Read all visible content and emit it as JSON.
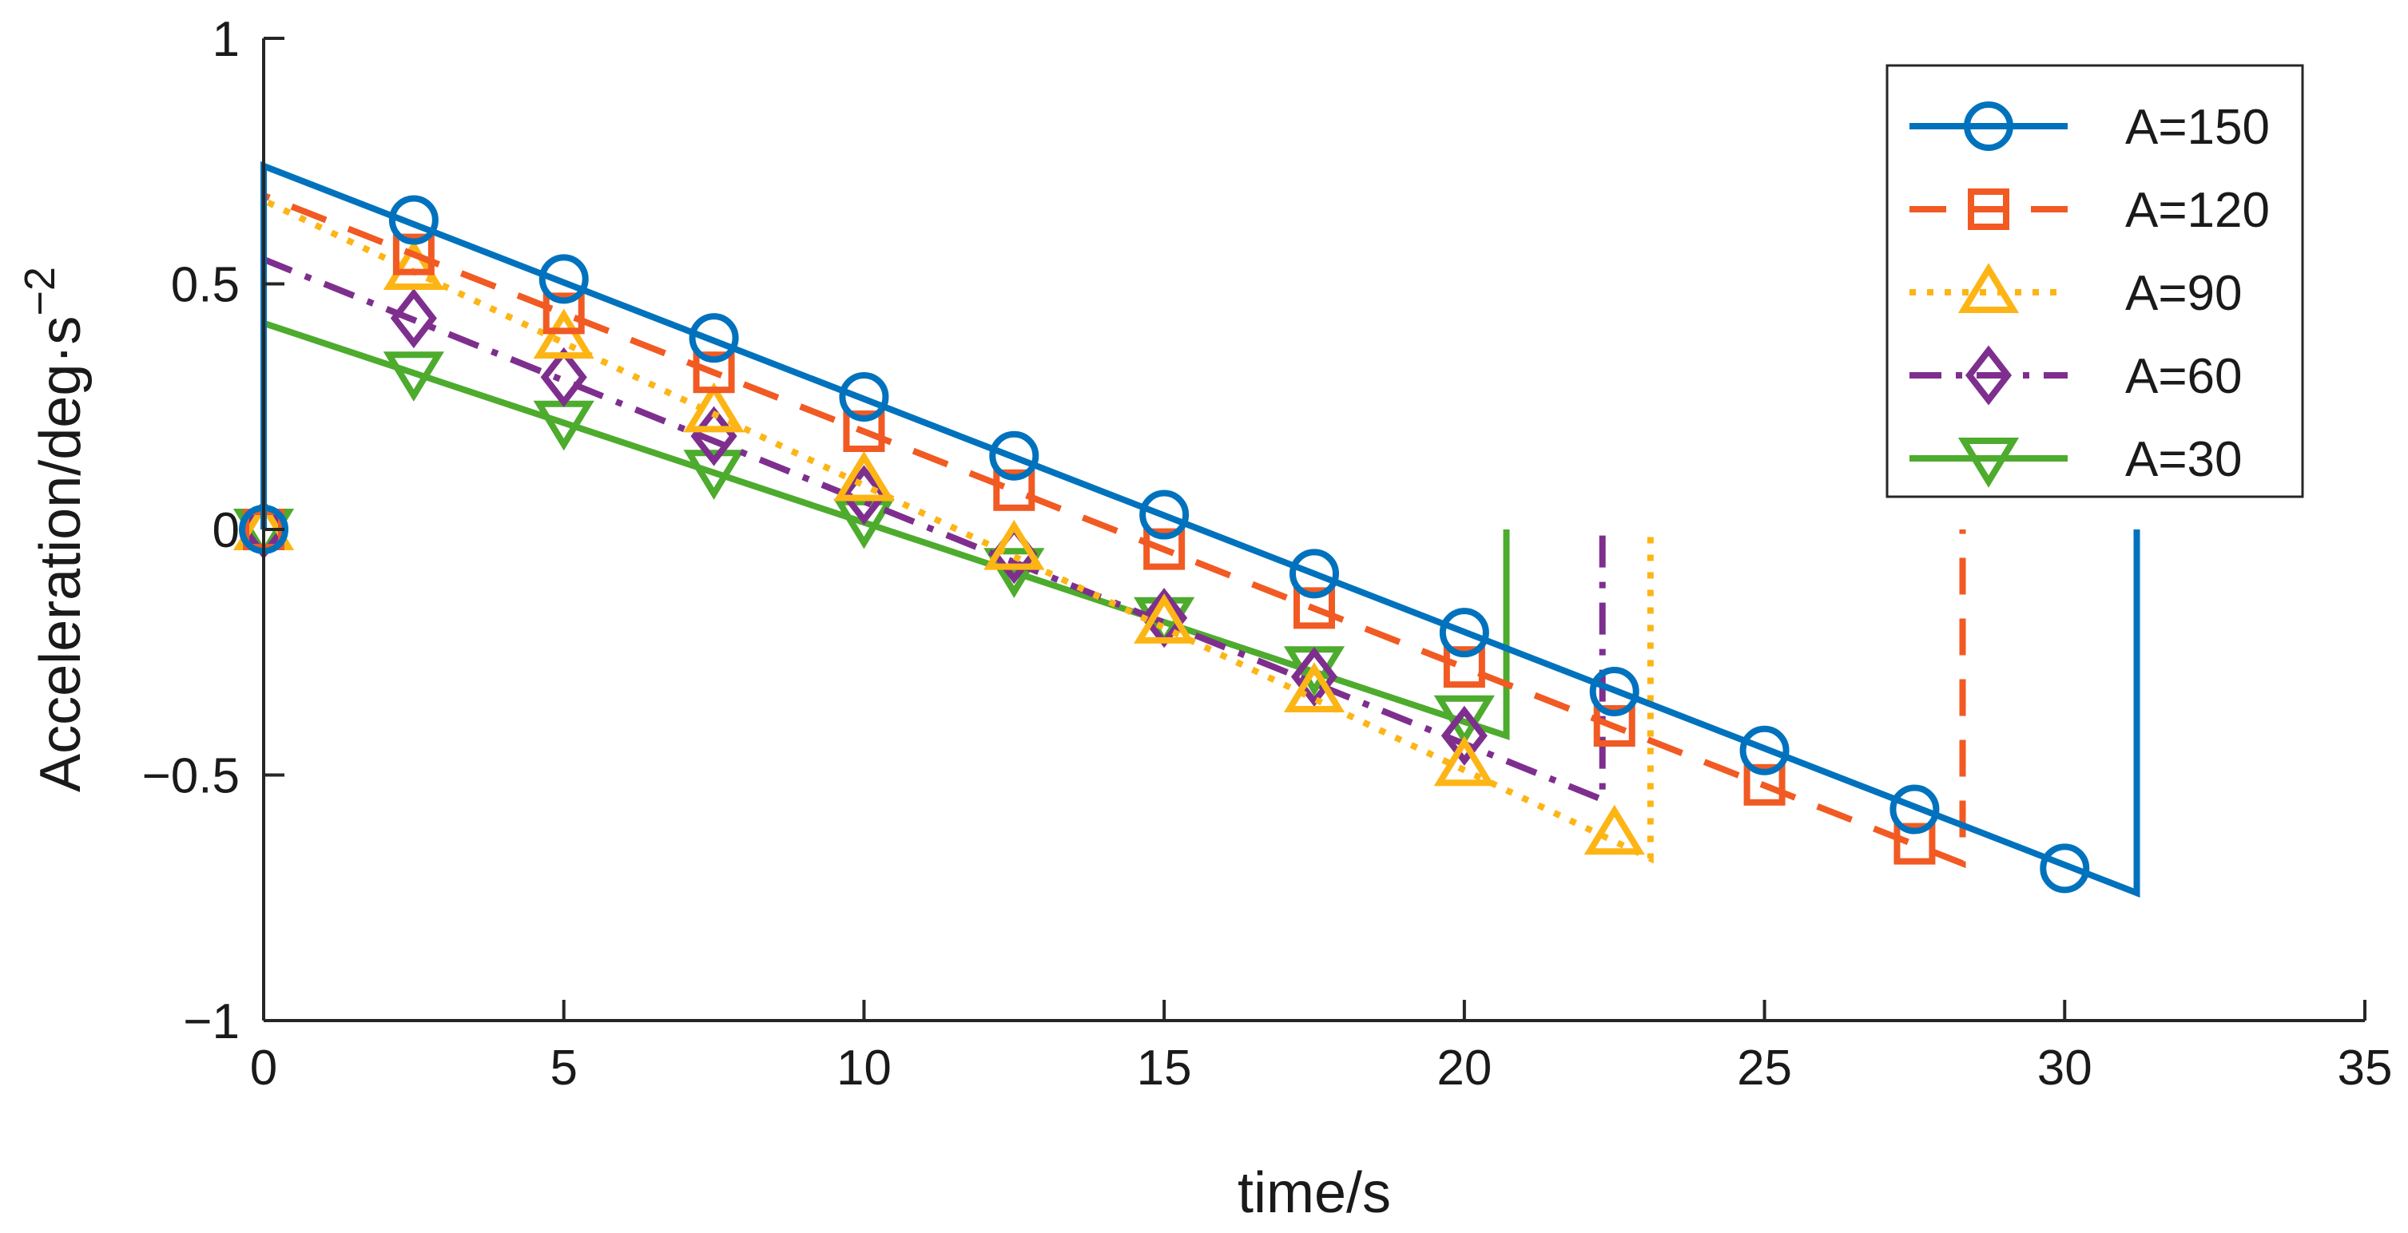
{
  "chart_data": {
    "type": "line",
    "title": "",
    "xlabel": "time/s",
    "ylabel_main": "Acceleration/deg·s",
    "ylabel_sup": "−2",
    "xlim": [
      0,
      35
    ],
    "ylim": [
      -1,
      1
    ],
    "xticks": [
      0,
      5,
      10,
      15,
      20,
      25,
      30,
      35
    ],
    "xtick_labels": [
      "0",
      "5",
      "10",
      "15",
      "20",
      "25",
      "30",
      "35"
    ],
    "yticks": [
      -1,
      -0.5,
      0,
      0.5,
      1
    ],
    "ytick_labels": [
      "−1",
      "−0.5",
      "0",
      "0.5",
      "1"
    ],
    "grid": false,
    "legend_position": "top-right",
    "series": [
      {
        "name": "A=150",
        "color": "#0072BD",
        "dash": "solid",
        "marker": "circle",
        "line": [
          [
            0,
            0
          ],
          [
            0,
            0.74
          ],
          [
            31.2,
            -0.74
          ],
          [
            31.2,
            0
          ]
        ],
        "markers": [
          [
            0,
            0
          ],
          [
            2.5,
            0.63
          ],
          [
            5,
            0.51
          ],
          [
            7.5,
            0.39
          ],
          [
            10,
            0.27
          ],
          [
            12.5,
            0.15
          ],
          [
            15,
            0.03
          ],
          [
            17.5,
            -0.09
          ],
          [
            20,
            -0.21
          ],
          [
            22.5,
            -0.33
          ],
          [
            25,
            -0.45
          ],
          [
            27.5,
            -0.57
          ],
          [
            30,
            -0.69
          ]
        ]
      },
      {
        "name": "A=120",
        "color": "#F15A22",
        "dash": "dashed",
        "marker": "square",
        "line": [
          [
            0,
            0
          ],
          [
            0,
            0.68
          ],
          [
            28.3,
            -0.68
          ],
          [
            28.3,
            0
          ]
        ],
        "markers": [
          [
            0,
            0
          ],
          [
            2.5,
            0.56
          ],
          [
            5,
            0.44
          ],
          [
            7.5,
            0.32
          ],
          [
            10,
            0.2
          ],
          [
            12.5,
            0.08
          ],
          [
            15,
            -0.04
          ],
          [
            17.5,
            -0.16
          ],
          [
            20,
            -0.28
          ],
          [
            22.5,
            -0.4
          ],
          [
            25,
            -0.52
          ],
          [
            27.5,
            -0.64
          ]
        ]
      },
      {
        "name": "A=90",
        "color": "#FDB515",
        "dash": "dotted",
        "marker": "triangle-up",
        "line": [
          [
            0,
            0
          ],
          [
            0,
            0.67
          ],
          [
            23.1,
            -0.67
          ],
          [
            23.1,
            0
          ]
        ],
        "markers": [
          [
            0,
            0
          ],
          [
            2.5,
            0.53
          ],
          [
            5,
            0.39
          ],
          [
            7.5,
            0.24
          ],
          [
            10,
            0.1
          ],
          [
            12.5,
            -0.04
          ],
          [
            15,
            -0.19
          ],
          [
            17.5,
            -0.33
          ],
          [
            20,
            -0.48
          ],
          [
            22.5,
            -0.62
          ]
        ]
      },
      {
        "name": "A=60",
        "color": "#7E2F8E",
        "dash": "dashdot",
        "marker": "diamond",
        "line": [
          [
            0,
            0
          ],
          [
            0,
            0.55
          ],
          [
            22.3,
            -0.55
          ],
          [
            22.3,
            0
          ]
        ],
        "markers": [
          [
            0,
            0
          ],
          [
            2.5,
            0.43
          ],
          [
            5,
            0.31
          ],
          [
            7.5,
            0.19
          ],
          [
            10,
            0.07
          ],
          [
            12.5,
            -0.05
          ],
          [
            15,
            -0.18
          ],
          [
            17.5,
            -0.3
          ],
          [
            20,
            -0.42
          ]
        ]
      },
      {
        "name": "A=30",
        "color": "#4DAB2D",
        "dash": "solid",
        "marker": "triangle-down",
        "line": [
          [
            0,
            0
          ],
          [
            0,
            0.42
          ],
          [
            20.7,
            -0.42
          ],
          [
            20.7,
            0
          ]
        ],
        "markers": [
          [
            0,
            0
          ],
          [
            2.5,
            0.32
          ],
          [
            5,
            0.22
          ],
          [
            7.5,
            0.12
          ],
          [
            10,
            0.02
          ],
          [
            12.5,
            -0.08
          ],
          [
            15,
            -0.18
          ],
          [
            17.5,
            -0.28
          ],
          [
            20,
            -0.38
          ]
        ]
      }
    ]
  }
}
